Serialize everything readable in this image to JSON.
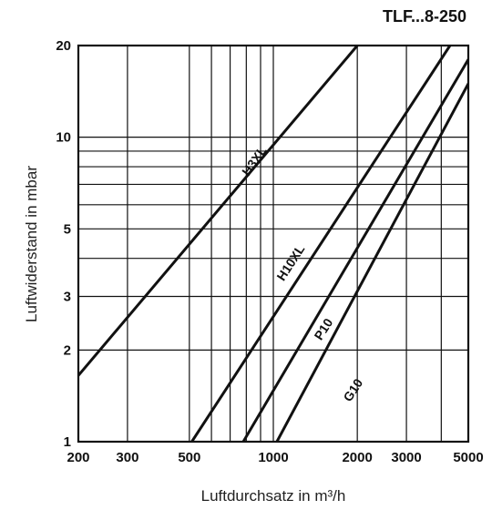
{
  "chart_data": {
    "type": "line",
    "title": "TLF...8-250",
    "xlabel": "Luftdurchsatz in m³/h",
    "ylabel": "Luftwiderstand in mbar",
    "x_scale": "log",
    "y_scale": "log",
    "xlim": [
      200,
      5000
    ],
    "ylim": [
      1,
      20
    ],
    "x_ticks": [
      200,
      300,
      500,
      1000,
      2000,
      3000,
      5000
    ],
    "x_tick_labels": [
      "200",
      "300",
      "500",
      "1000",
      "2000",
      "3000",
      "5000"
    ],
    "y_ticks": [
      1,
      2,
      3,
      5,
      10,
      20
    ],
    "y_tick_labels": [
      "1",
      "2",
      "3",
      "5",
      "10",
      "20"
    ],
    "x_grid": [
      200,
      300,
      500,
      600,
      700,
      800,
      900,
      1000,
      2000,
      3000,
      4000,
      5000
    ],
    "y_grid": [
      1,
      2,
      3,
      4,
      5,
      6,
      7,
      8,
      9,
      10,
      20
    ],
    "grid": true,
    "series": [
      {
        "name": "H3XL",
        "x": [
          200,
          2000
        ],
        "y": [
          1.65,
          20
        ]
      },
      {
        "name": "H10XL",
        "x": [
          510,
          4300
        ],
        "y": [
          1,
          20
        ]
      },
      {
        "name": "P10",
        "x": [
          780,
          5000
        ],
        "y": [
          1,
          18
        ]
      },
      {
        "name": "G10",
        "x": [
          1030,
          5000
        ],
        "y": [
          1,
          15
        ]
      }
    ],
    "series_label_pos": [
      {
        "x": 880,
        "y": 8.2,
        "angle": -55
      },
      {
        "x": 1190,
        "y": 3.8,
        "angle": -57
      },
      {
        "x": 1560,
        "y": 2.3,
        "angle": -57
      },
      {
        "x": 1990,
        "y": 1.45,
        "angle": -57
      }
    ]
  }
}
